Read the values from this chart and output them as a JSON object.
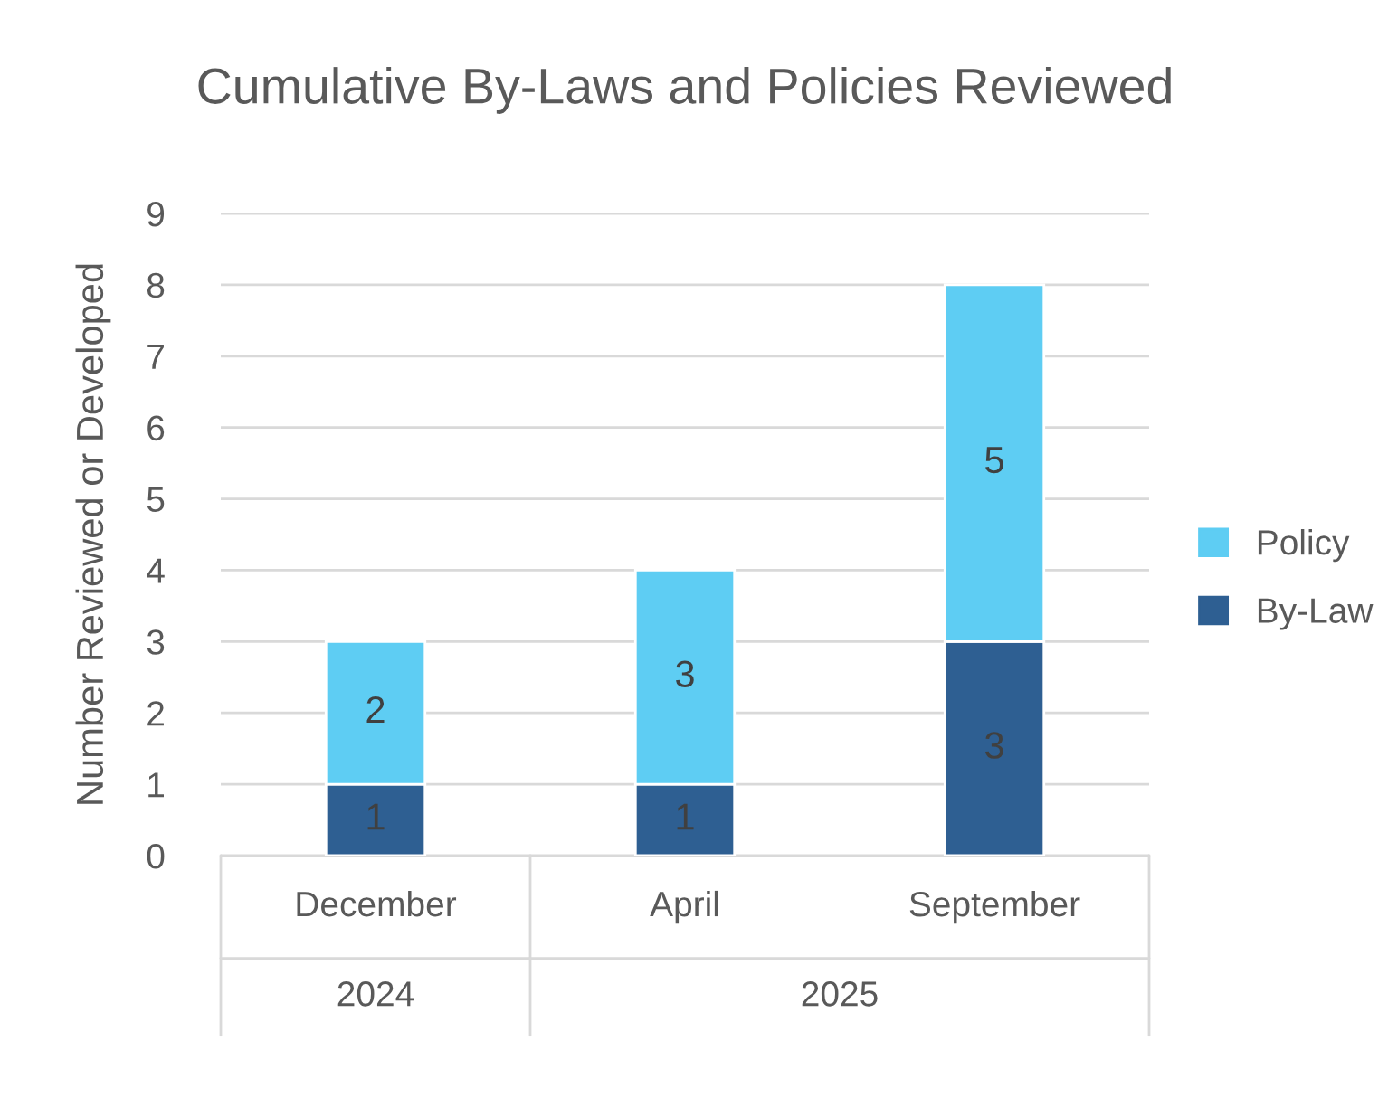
{
  "chart_data": {
    "type": "bar",
    "title": "Cumulative By-Laws and Policies Reviewed",
    "ylabel": "Number Reviewed or Developed",
    "categories": [
      "December",
      "April",
      "September"
    ],
    "series": [
      {
        "name": "By-Law",
        "color": "#2e5f92",
        "values": [
          1,
          1,
          3
        ]
      },
      {
        "name": "Policy",
        "color": "#5ecdf3",
        "values": [
          2,
          3,
          5
        ]
      }
    ],
    "stacked": true,
    "data_labels": true,
    "ylim": [
      0,
      9
    ],
    "yticks": [
      0,
      1,
      2,
      3,
      4,
      5,
      6,
      7,
      8,
      9
    ],
    "grid": "y",
    "legend": "right",
    "annotations": [
      "2024",
      "2025"
    ]
  }
}
